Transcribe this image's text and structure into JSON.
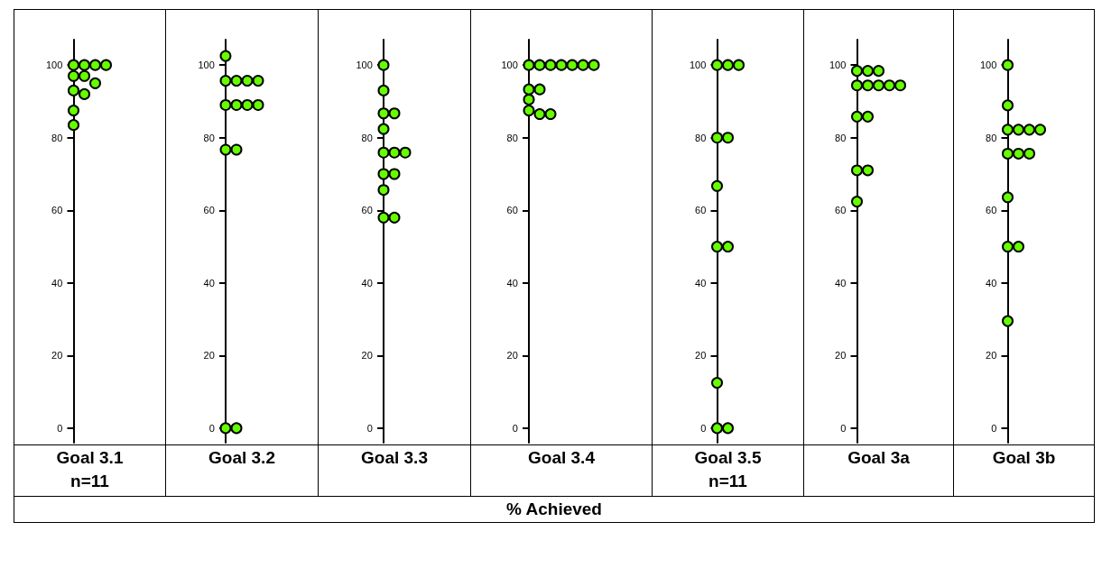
{
  "chart_data": [
    {
      "type": "scatter",
      "categories": [
        "Goal 3.1\nn=11"
      ],
      "series": [
        {
          "color": "#66ff00",
          "x": [
            "Goal 3.1\nn=11",
            "Goal 3.1\nn=11",
            "Goal 3.1\nn=11",
            "Goal 3.1\nn=11",
            "Goal 3.1\nn=11",
            "Goal 3.1\nn=11",
            "Goal 3.1\nn=11",
            "Goal 3.1\nn=11",
            "Goal 3.1\nn=11",
            "Goal 3.1\nn=11",
            "Goal 3.1\nn=11"
          ],
          "values": [
            100,
            100,
            100,
            100,
            97,
            97,
            95,
            93,
            92,
            87.5,
            83.5
          ]
        }
      ],
      "marker": "circle",
      "ylim": [
        -4,
        107
      ],
      "yticks": [
        0,
        20,
        40,
        60,
        80,
        100
      ],
      "grid": false,
      "annotations": [
        "% Achieved"
      ]
    },
    {
      "type": "scatter",
      "categories": [
        "Goal 3.2"
      ],
      "series": [
        {
          "color": "#66ff00",
          "x": [
            "Goal 3.2",
            "Goal 3.2",
            "Goal 3.2",
            "Goal 3.2",
            "Goal 3.2",
            "Goal 3.2",
            "Goal 3.2",
            "Goal 3.2",
            "Goal 3.2",
            "Goal 3.2",
            "Goal 3.2",
            "Goal 3.2",
            "Goal 3.2"
          ],
          "values": [
            102.5,
            95.7,
            95.7,
            95.7,
            95.7,
            89,
            89,
            89,
            89,
            76.7,
            76.7,
            0,
            0
          ]
        }
      ],
      "marker": "circle",
      "ylim": [
        -4,
        107
      ],
      "yticks": [
        0,
        20,
        40,
        60,
        80,
        100
      ],
      "grid": false
    },
    {
      "type": "scatter",
      "categories": [
        "Goal 3.3"
      ],
      "series": [
        {
          "color": "#66ff00",
          "x": [
            "Goal 3.3",
            "Goal 3.3",
            "Goal 3.3",
            "Goal 3.3",
            "Goal 3.3",
            "Goal 3.3",
            "Goal 3.3",
            "Goal 3.3",
            "Goal 3.3",
            "Goal 3.3",
            "Goal 3.3",
            "Goal 3.3",
            "Goal 3.3"
          ],
          "values": [
            100,
            93,
            86.7,
            86.7,
            82.4,
            75.9,
            75.9,
            75.9,
            70,
            70,
            65.6,
            58,
            58
          ]
        }
      ],
      "marker": "circle",
      "ylim": [
        -4,
        107
      ],
      "yticks": [
        0,
        20,
        40,
        60,
        80,
        100
      ],
      "grid": false
    },
    {
      "type": "scatter",
      "categories": [
        "Goal 3.4"
      ],
      "series": [
        {
          "color": "#66ff00",
          "x": [
            "Goal 3.4",
            "Goal 3.4",
            "Goal 3.4",
            "Goal 3.4",
            "Goal 3.4",
            "Goal 3.4",
            "Goal 3.4",
            "Goal 3.4",
            "Goal 3.4",
            "Goal 3.4",
            "Goal 3.4",
            "Goal 3.4",
            "Goal 3.4"
          ],
          "values": [
            100,
            100,
            100,
            100,
            100,
            100,
            100,
            93.3,
            93.3,
            90.5,
            87.5,
            86.5,
            86.5
          ]
        }
      ],
      "marker": "circle",
      "ylim": [
        -4,
        107
      ],
      "yticks": [
        0,
        20,
        40,
        60,
        80,
        100
      ],
      "grid": false
    },
    {
      "type": "scatter",
      "categories": [
        "Goal 3.5\nn=11"
      ],
      "series": [
        {
          "color": "#66ff00",
          "x": [
            "Goal 3.5\nn=11",
            "Goal 3.5\nn=11",
            "Goal 3.5\nn=11",
            "Goal 3.5\nn=11",
            "Goal 3.5\nn=11",
            "Goal 3.5\nn=11",
            "Goal 3.5\nn=11",
            "Goal 3.5\nn=11",
            "Goal 3.5\nn=11",
            "Goal 3.5\nn=11",
            "Goal 3.5\nn=11"
          ],
          "values": [
            100,
            100,
            100,
            80,
            80,
            66.7,
            50,
            50,
            12.5,
            0,
            0
          ]
        }
      ],
      "marker": "circle",
      "ylim": [
        -4,
        107
      ],
      "yticks": [
        0,
        20,
        40,
        60,
        80,
        100
      ],
      "grid": false
    },
    {
      "type": "scatter",
      "categories": [
        "Goal 3a"
      ],
      "series": [
        {
          "color": "#66ff00",
          "x": [
            "Goal 3a",
            "Goal 3a",
            "Goal 3a",
            "Goal 3a",
            "Goal 3a",
            "Goal 3a",
            "Goal 3a",
            "Goal 3a",
            "Goal 3a",
            "Goal 3a",
            "Goal 3a",
            "Goal 3a",
            "Goal 3a"
          ],
          "values": [
            98.4,
            98.4,
            98.4,
            94.4,
            94.4,
            94.4,
            94.4,
            94.4,
            85.8,
            85.8,
            71,
            71,
            62.4
          ]
        }
      ],
      "marker": "circle",
      "ylim": [
        -4,
        107
      ],
      "yticks": [
        0,
        20,
        40,
        60,
        80,
        100
      ],
      "grid": false
    },
    {
      "type": "scatter",
      "categories": [
        "Goal 3b"
      ],
      "series": [
        {
          "color": "#66ff00",
          "x": [
            "Goal 3b",
            "Goal 3b",
            "Goal 3b",
            "Goal 3b",
            "Goal 3b",
            "Goal 3b",
            "Goal 3b",
            "Goal 3b",
            "Goal 3b",
            "Goal 3b",
            "Goal 3b",
            "Goal 3b",
            "Goal 3b"
          ],
          "values": [
            100,
            88.9,
            82.2,
            82.2,
            82.2,
            82.2,
            75.6,
            75.6,
            75.6,
            63.6,
            50,
            50,
            29.5
          ]
        }
      ],
      "marker": "circle",
      "ylim": [
        -4,
        107
      ],
      "yticks": [
        0,
        20,
        40,
        60,
        80,
        100
      ],
      "grid": false
    }
  ]
}
